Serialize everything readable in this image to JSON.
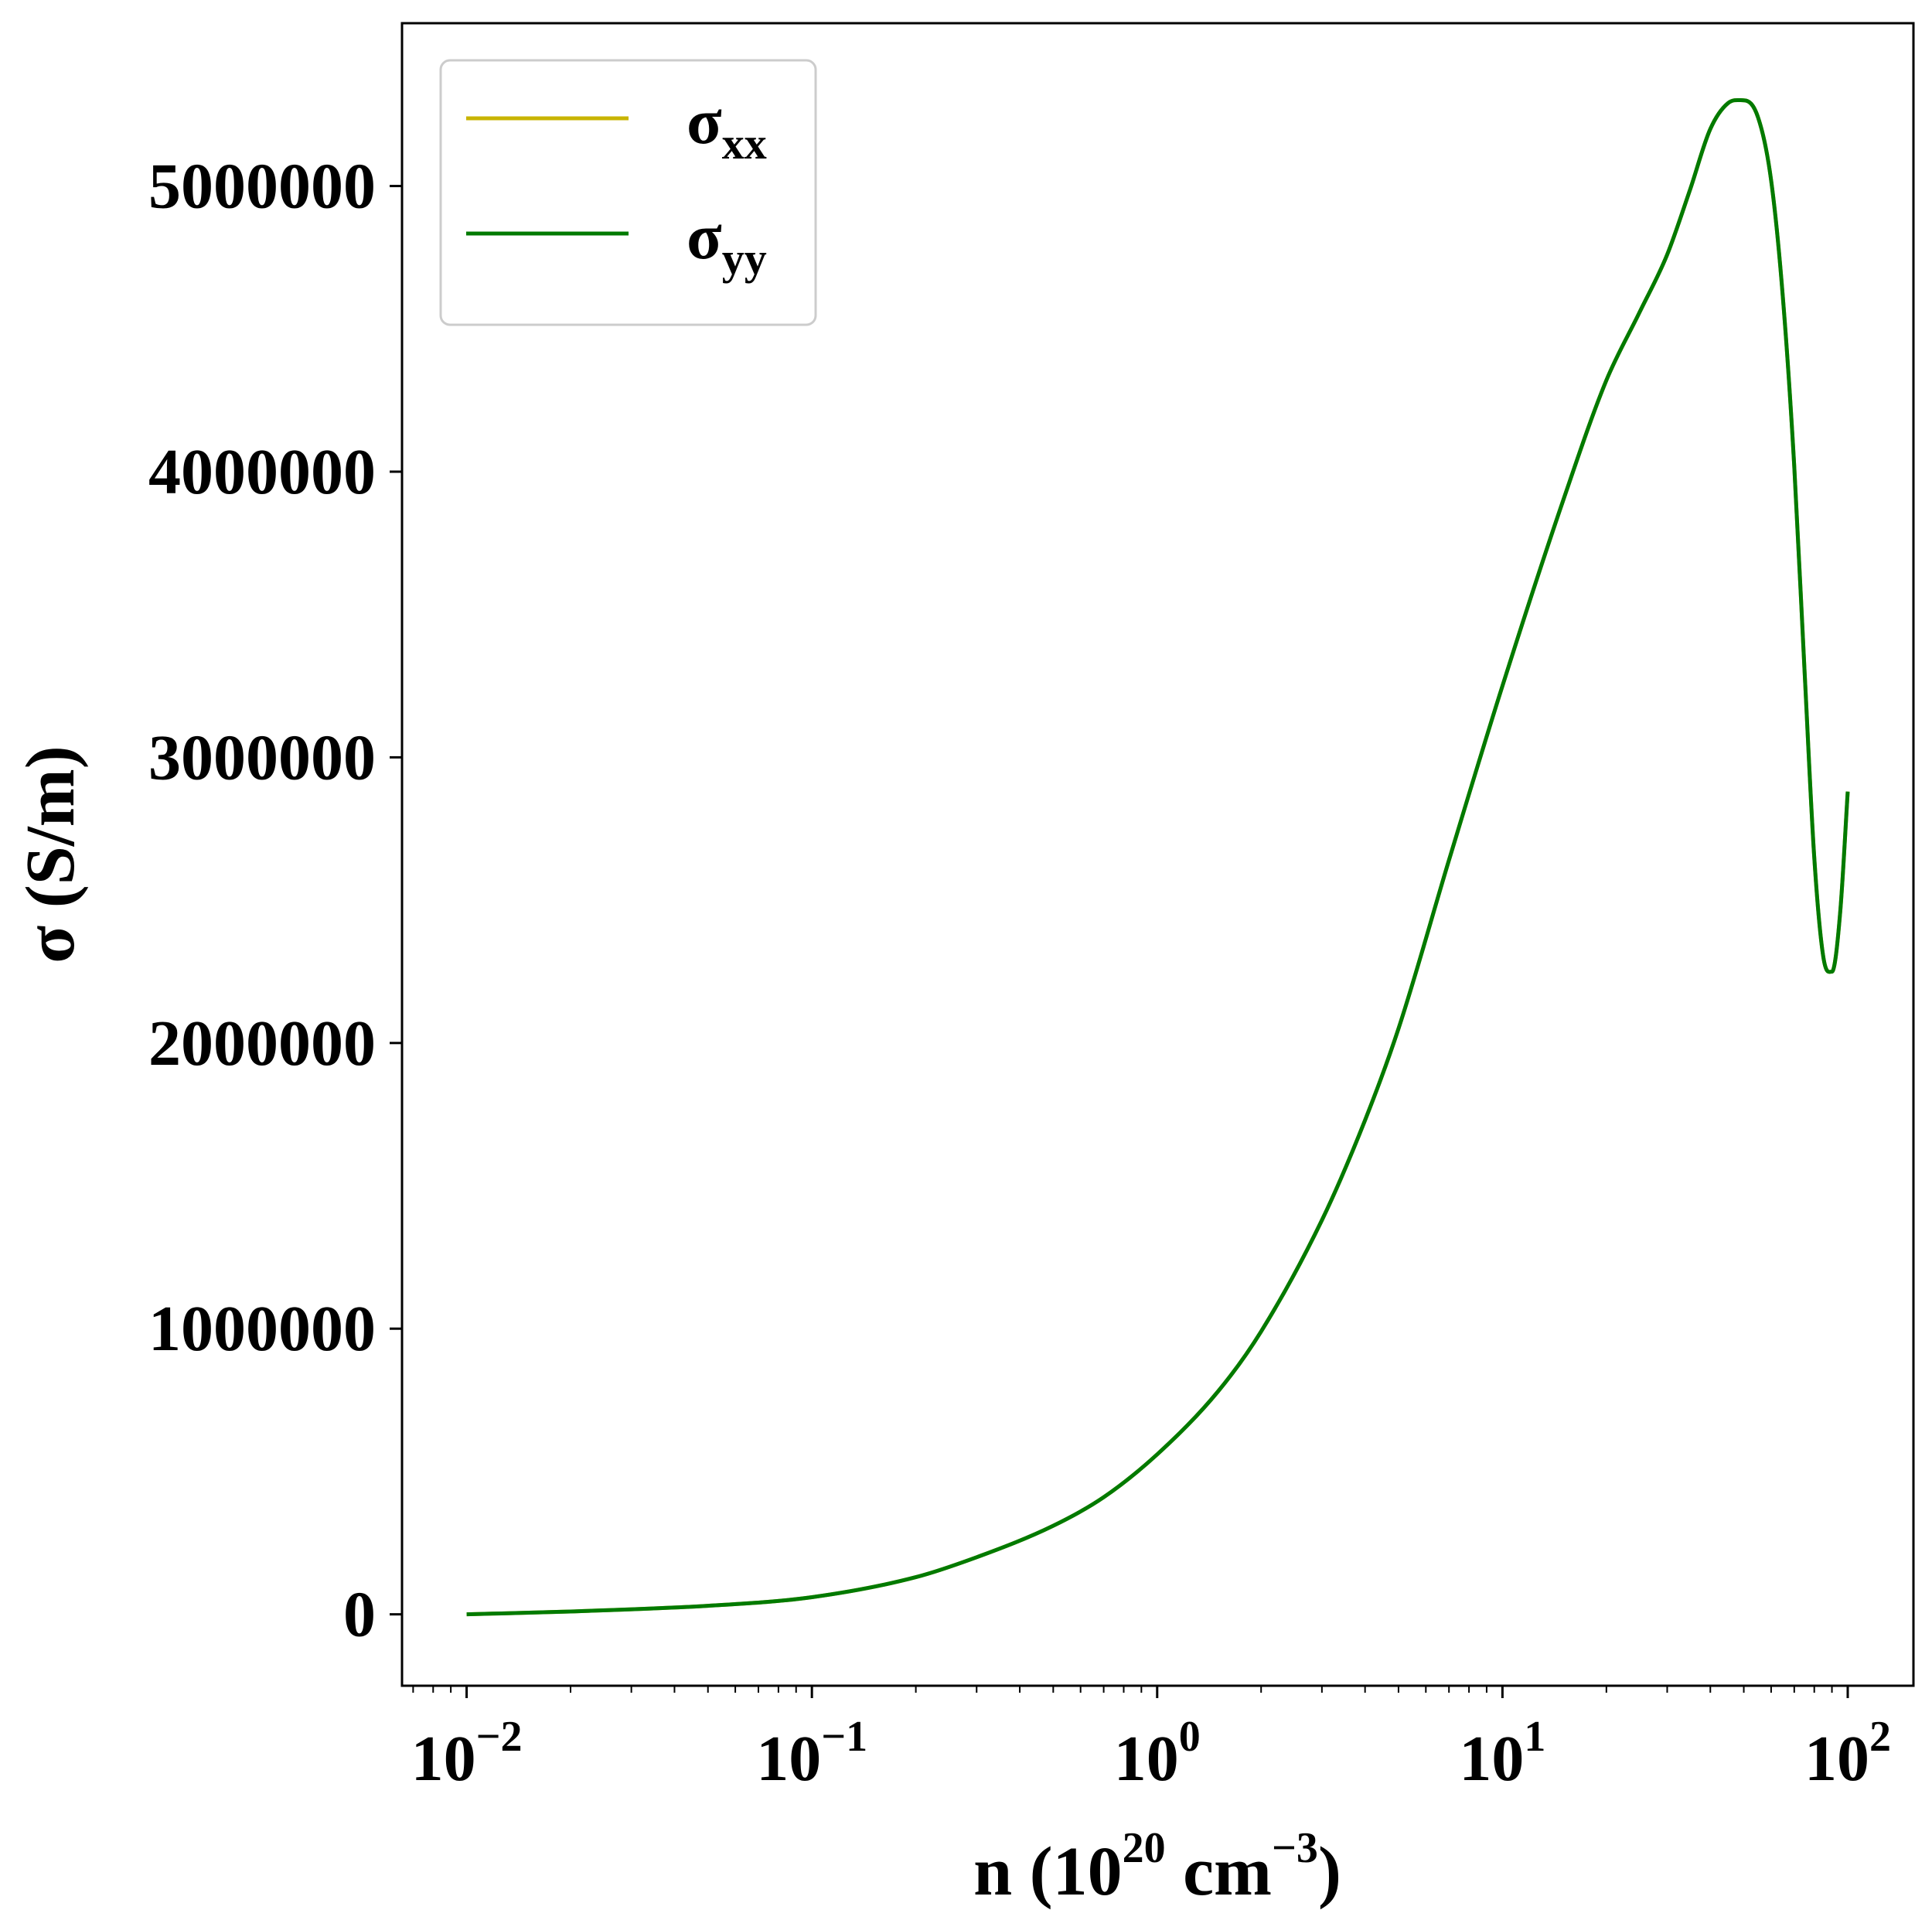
{
  "chart_data": {
    "type": "line",
    "xlabel": {
      "main": "n (10",
      "exp1": "20",
      "mid": " cm",
      "exp2": "−3",
      "end": ")"
    },
    "ylabel": "σ (S/m)",
    "x_scale": "log",
    "xlim": [
      0.0065,
      155
    ],
    "ylim": [
      -250000,
      5570000
    ],
    "x_ticks": [
      {
        "value": 0.01,
        "base": "10",
        "exp": "−2"
      },
      {
        "value": 0.1,
        "base": "10",
        "exp": "−1"
      },
      {
        "value": 1,
        "base": "10",
        "exp": "0"
      },
      {
        "value": 10,
        "base": "10",
        "exp": "1"
      },
      {
        "value": 100,
        "base": "10",
        "exp": "2"
      }
    ],
    "y_ticks": [
      {
        "value": 0,
        "label": "0"
      },
      {
        "value": 1000000,
        "label": "1000000"
      },
      {
        "value": 2000000,
        "label": "2000000"
      },
      {
        "value": 3000000,
        "label": "3000000"
      },
      {
        "value": 4000000,
        "label": "4000000"
      },
      {
        "value": 5000000,
        "label": "5000000"
      }
    ],
    "grid": false,
    "legend_position": "top-left",
    "series": [
      {
        "name": "σxx",
        "label_main": "σ",
        "label_sub": "xx",
        "color": "#c8b400",
        "x": [
          0.01,
          0.02,
          0.05,
          0.1,
          0.2,
          0.3,
          0.5,
          0.7,
          1.0,
          1.5,
          2.0,
          3.0,
          4.0,
          5.0,
          7.0,
          10,
          15,
          20,
          25,
          30,
          35,
          40,
          45,
          50,
          55,
          60,
          65,
          70,
          75,
          80,
          85,
          90,
          95,
          100
        ],
        "y": [
          0,
          10000,
          30000,
          60000,
          130000,
          200000,
          310000,
          410000,
          560000,
          780000,
          990000,
          1380000,
          1730000,
          2050000,
          2640000,
          3250000,
          3900000,
          4320000,
          4560000,
          4760000,
          4990000,
          5200000,
          5290000,
          5300000,
          5240000,
          5020000,
          4600000,
          4020000,
          3300000,
          2650000,
          2300000,
          2250000,
          2450000,
          2880000
        ],
        "hidden_under": "σyy"
      },
      {
        "name": "σyy",
        "label_main": "σ",
        "label_sub": "yy",
        "color": "#007a00",
        "x": [
          0.01,
          0.02,
          0.05,
          0.1,
          0.2,
          0.3,
          0.5,
          0.7,
          1.0,
          1.5,
          2.0,
          3.0,
          4.0,
          5.0,
          7.0,
          10,
          15,
          20,
          25,
          30,
          35,
          40,
          45,
          50,
          55,
          60,
          65,
          70,
          75,
          80,
          85,
          90,
          95,
          100
        ],
        "y": [
          0,
          10000,
          30000,
          60000,
          130000,
          200000,
          310000,
          410000,
          560000,
          780000,
          990000,
          1380000,
          1730000,
          2050000,
          2640000,
          3250000,
          3900000,
          4320000,
          4560000,
          4760000,
          4990000,
          5200000,
          5290000,
          5300000,
          5240000,
          5020000,
          4600000,
          4020000,
          3300000,
          2650000,
          2300000,
          2250000,
          2450000,
          2880000
        ]
      }
    ]
  }
}
